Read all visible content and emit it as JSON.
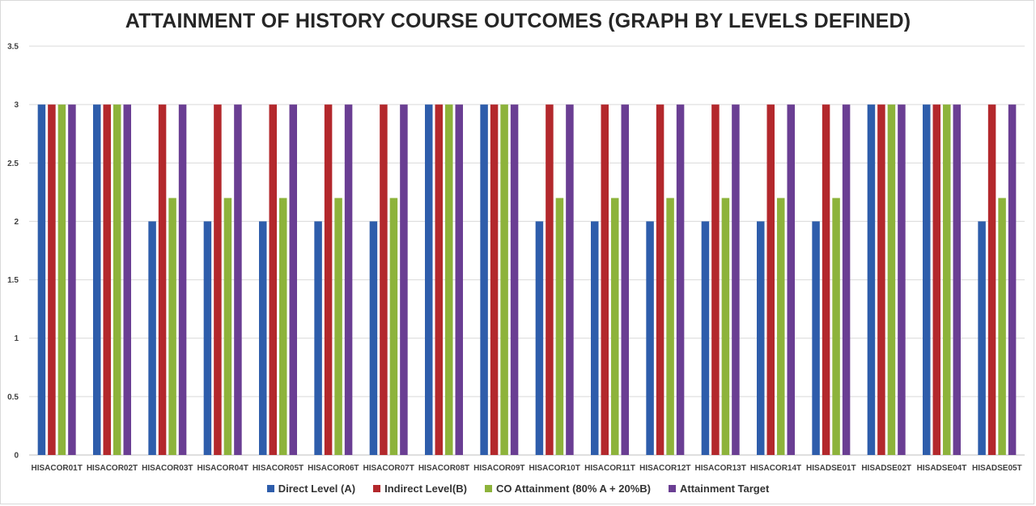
{
  "chart_data": {
    "type": "bar",
    "title": "ATTAINMENT  OF HISTORY COURSE OUTCOMES (GRAPH BY LEVELS DEFINED)",
    "categories": [
      "HISACOR01T",
      "HISACOR02T",
      "HISACOR03T",
      "HISACOR04T",
      "HISACOR05T",
      "HISACOR06T",
      "HISACOR07T",
      "HISACOR08T",
      "HISACOR09T",
      "HISACOR10T",
      "HISACOR11T",
      "HISACOR12T",
      "HISACOR13T",
      "HISACOR14T",
      "HISADSE01T",
      "HISADSE02T",
      "HISADSE04T",
      "HISADSE05T"
    ],
    "series": [
      {
        "name": "Direct Level (A)",
        "color": "#2e5dab",
        "values": [
          3,
          3,
          2,
          2,
          2,
          2,
          2,
          3,
          3,
          2,
          2,
          2,
          2,
          2,
          2,
          3,
          3,
          2
        ]
      },
      {
        "name": "Indirect Level(B)",
        "color": "#b3282c",
        "values": [
          3,
          3,
          3,
          3,
          3,
          3,
          3,
          3,
          3,
          3,
          3,
          3,
          3,
          3,
          3,
          3,
          3,
          3
        ]
      },
      {
        "name": "CO Attainment (80% A + 20%B)",
        "color": "#8db33b",
        "values": [
          3,
          3,
          2.2,
          2.2,
          2.2,
          2.2,
          2.2,
          3,
          3,
          2.2,
          2.2,
          2.2,
          2.2,
          2.2,
          2.2,
          3,
          3,
          2.2
        ]
      },
      {
        "name": "Attainment Target",
        "color": "#6a3e93",
        "values": [
          3,
          3,
          3,
          3,
          3,
          3,
          3,
          3,
          3,
          3,
          3,
          3,
          3,
          3,
          3,
          3,
          3,
          3
        ]
      }
    ],
    "ylim": [
      0,
      3.5
    ],
    "yticks": [
      "0",
      "0.5",
      "1",
      "1.5",
      "2",
      "2.5",
      "3",
      "3.5"
    ],
    "grid": true,
    "legend_position": "bottom"
  }
}
